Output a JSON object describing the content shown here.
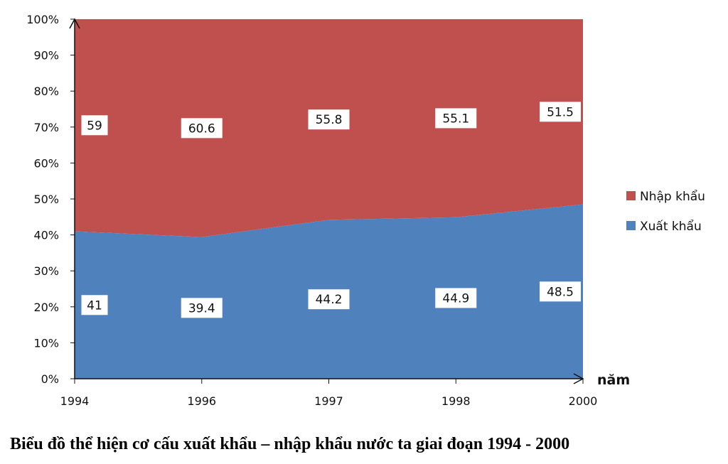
{
  "chart_data": {
    "type": "area",
    "stacked": "percent",
    "categories": [
      "1994",
      "1996",
      "1997",
      "1998",
      "2000"
    ],
    "series": [
      {
        "name": "Xuất khẩu",
        "values": [
          41,
          39.4,
          44.2,
          44.9,
          48.5
        ],
        "color": "#4f81bd"
      },
      {
        "name": "Nhập khẩu",
        "values": [
          59,
          60.6,
          55.8,
          55.1,
          51.5
        ],
        "color": "#c0504d"
      }
    ],
    "ylim": [
      0,
      100
    ],
    "yticks": [
      "0%",
      "10%",
      "20%",
      "30%",
      "40%",
      "50%",
      "60%",
      "70%",
      "80%",
      "90%",
      "100%"
    ],
    "xlabel": "năm",
    "legend_position": "right",
    "grid": false,
    "title": "Biểu đồ thể hiện cơ cấu xuất khẩu – nhập khẩu nước ta giai đoạn 1994 - 2000"
  }
}
